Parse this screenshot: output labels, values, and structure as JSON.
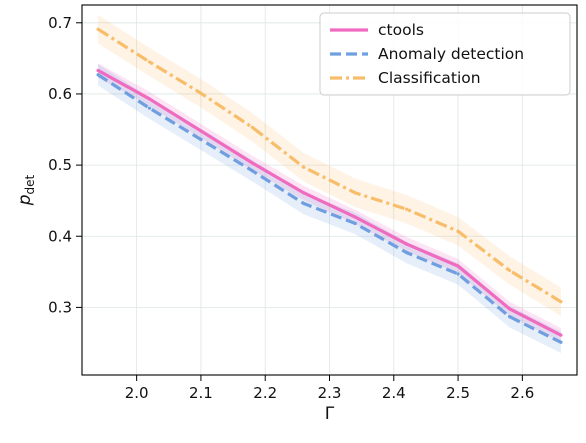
{
  "chart_data": {
    "type": "line",
    "xlabel": "Γ",
    "ylabel_main": "p",
    "ylabel_sub": "det",
    "xlim": [
      1.915,
      2.685
    ],
    "ylim": [
      0.205,
      0.725
    ],
    "xticks": [
      2.0,
      2.1,
      2.2,
      2.3,
      2.4,
      2.5,
      2.6
    ],
    "xtick_labels": [
      "2.0",
      "2.1",
      "2.2",
      "2.3",
      "2.4",
      "2.5",
      "2.6"
    ],
    "yticks": [
      0.3,
      0.4,
      0.5,
      0.6,
      0.7
    ],
    "ytick_labels": [
      "0.3",
      "0.4",
      "0.5",
      "0.6",
      "0.7"
    ],
    "grid": true,
    "legend_position": "top-right",
    "x": [
      1.94,
      2.02,
      2.1,
      2.18,
      2.26,
      2.34,
      2.42,
      2.5,
      2.58,
      2.66
    ],
    "series": [
      {
        "name": "ctools",
        "color": "#f06bc0",
        "dash": "solid",
        "values": [
          0.633,
          0.593,
          0.548,
          0.503,
          0.461,
          0.427,
          0.389,
          0.358,
          0.298,
          0.261
        ],
        "band": 0.01
      },
      {
        "name": "Anomaly detection",
        "color": "#6f9fe0",
        "dash": "dashed",
        "values": [
          0.627,
          0.58,
          0.536,
          0.492,
          0.446,
          0.418,
          0.377,
          0.347,
          0.287,
          0.251
        ],
        "band": 0.015
      },
      {
        "name": "Classification",
        "color": "#f8bd6a",
        "dash": "dashdot",
        "values": [
          0.691,
          0.645,
          0.601,
          0.553,
          0.497,
          0.461,
          0.438,
          0.407,
          0.352,
          0.308
        ],
        "band": 0.02
      }
    ]
  }
}
